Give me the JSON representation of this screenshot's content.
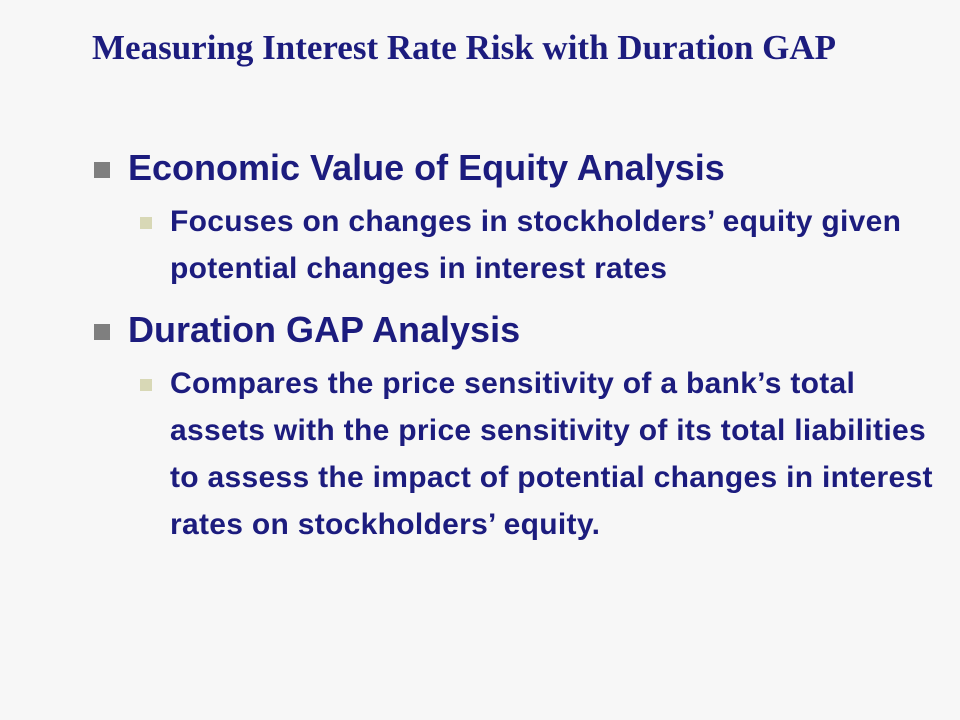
{
  "slide": {
    "title": "Measuring Interest Rate Risk with Duration GAP",
    "bullets": [
      {
        "text": "Economic Value of Equity Analysis",
        "sub": [
          "Focuses on changes in stockholders’ equity given potential changes in interest rates"
        ]
      },
      {
        "text": "Duration GAP Analysis",
        "sub": [
          "Compares the price sensitivity of a bank’s total assets with the price sensitivity of its total liabilities to assess the impact of potential changes in interest rates on stockholders’ equity."
        ]
      }
    ]
  },
  "colors": {
    "text": "#1c1c7e",
    "bullet_level1": "#7f7f7f",
    "bullet_level2": "#d8d8b6",
    "background": "#f7f7f7"
  }
}
